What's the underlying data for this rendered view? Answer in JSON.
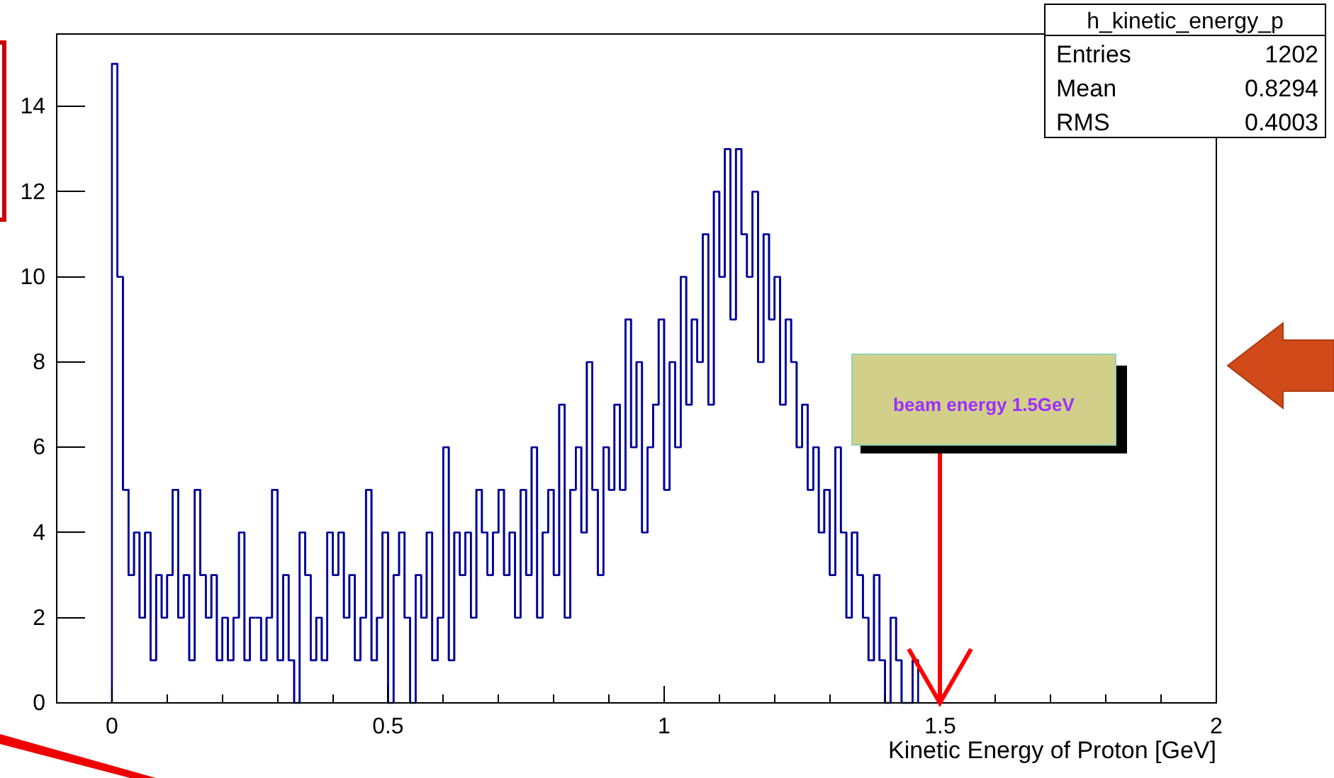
{
  "chart_data": {
    "type": "histogram",
    "xlabel": "Kinetic Energy of Proton [GeV]",
    "bins": [
      0,
      0.01,
      0.02,
      0.03,
      0.04,
      0.05,
      0.06,
      0.07,
      0.08,
      0.09,
      0.1,
      0.11,
      0.12,
      0.13,
      0.14,
      0.15,
      0.16,
      0.17,
      0.18,
      0.19,
      0.2,
      0.21,
      0.22,
      0.23,
      0.24,
      0.25,
      0.26,
      0.27,
      0.28,
      0.29,
      0.3,
      0.31,
      0.32,
      0.33,
      0.34,
      0.35,
      0.36,
      0.37,
      0.38,
      0.39,
      0.4,
      0.41,
      0.42,
      0.43,
      0.44,
      0.45,
      0.46,
      0.47,
      0.48,
      0.49,
      0.5,
      0.51,
      0.52,
      0.53,
      0.54,
      0.55,
      0.56,
      0.57,
      0.58,
      0.59,
      0.6,
      0.61,
      0.62,
      0.63,
      0.64,
      0.65,
      0.66,
      0.67,
      0.68,
      0.69,
      0.7,
      0.71,
      0.72,
      0.73,
      0.74,
      0.75,
      0.76,
      0.77,
      0.78,
      0.79,
      0.8,
      0.81,
      0.82,
      0.83,
      0.84,
      0.85,
      0.86,
      0.87,
      0.88,
      0.89,
      0.9,
      0.91,
      0.92,
      0.93,
      0.94,
      0.95,
      0.96,
      0.97,
      0.98,
      0.99,
      1,
      1.01,
      1.02,
      1.03,
      1.04,
      1.05,
      1.06,
      1.07,
      1.08,
      1.09,
      1.1,
      1.11,
      1.12,
      1.13,
      1.14,
      1.15,
      1.16,
      1.17,
      1.18,
      1.19,
      1.2,
      1.21,
      1.22,
      1.23,
      1.24,
      1.25,
      1.26,
      1.27,
      1.28,
      1.29,
      1.3,
      1.31,
      1.32,
      1.33,
      1.34,
      1.35,
      1.36,
      1.37,
      1.38,
      1.39,
      1.4,
      1.41,
      1.42,
      1.43,
      1.44,
      1.45,
      1.46
    ],
    "values": [
      15,
      10,
      5,
      3,
      4,
      2,
      4,
      1,
      3,
      2,
      3,
      5,
      2,
      3,
      1,
      5,
      3,
      2,
      3,
      1,
      2,
      1,
      2,
      4,
      1,
      2,
      2,
      1,
      2,
      5,
      1,
      3,
      1,
      0,
      4,
      3,
      1,
      2,
      1,
      4,
      3,
      4,
      2,
      3,
      1,
      2,
      5,
      1,
      2,
      4,
      0,
      3,
      4,
      2,
      0,
      3,
      2,
      4,
      1,
      2,
      6,
      1,
      4,
      3,
      4,
      2,
      5,
      4,
      3,
      4,
      5,
      3,
      4,
      2,
      5,
      3,
      6,
      2,
      4,
      5,
      3,
      7,
      2,
      5,
      6,
      4,
      8,
      5,
      3,
      6,
      5,
      7,
      5,
      9,
      6,
      8,
      4,
      6,
      7,
      9,
      5,
      8,
      6,
      10,
      7,
      9,
      8,
      11,
      7,
      12,
      10,
      13,
      9,
      13,
      11,
      10,
      12,
      8,
      11,
      9,
      10,
      7,
      9,
      8,
      6,
      7,
      5,
      6,
      4,
      5,
      3,
      6,
      4,
      2,
      4,
      3,
      2,
      1,
      3,
      1,
      0,
      2,
      1,
      0,
      0,
      1
    ],
    "color": "#000099",
    "xlim": [
      -0.1,
      2
    ],
    "xticks": [
      {
        "value": -0.1,
        "label": null
      },
      0,
      {
        "value": 0.1,
        "label": null
      },
      {
        "value": 0.2,
        "label": null
      },
      {
        "value": 0.3,
        "label": null
      },
      {
        "value": 0.4,
        "label": null
      },
      0.5,
      {
        "value": 0.6,
        "label": null
      },
      {
        "value": 0.7,
        "label": null
      },
      {
        "value": 0.8,
        "label": null
      },
      {
        "value": 0.9,
        "label": null
      },
      1,
      {
        "value": 1.1,
        "label": null
      },
      {
        "value": 1.2,
        "label": null
      },
      {
        "value": 1.3,
        "label": null
      },
      {
        "value": 1.4,
        "label": null
      },
      1.5,
      {
        "value": 1.6,
        "label": null
      },
      {
        "value": 1.7,
        "label": null
      },
      {
        "value": 1.8,
        "label": null
      },
      {
        "value": 1.9,
        "label": null
      },
      2
    ],
    "ylim": [
      0,
      15.7
    ],
    "yticks": [
      0,
      2,
      4,
      6,
      8,
      10,
      12,
      14
    ],
    "annotations": [
      "h_kinetic_energy_p",
      "Entries",
      "1202",
      "Mean",
      "0.8294",
      "RMS",
      "0.4003",
      "beam energy 1.5GeV"
    ]
  }
}
